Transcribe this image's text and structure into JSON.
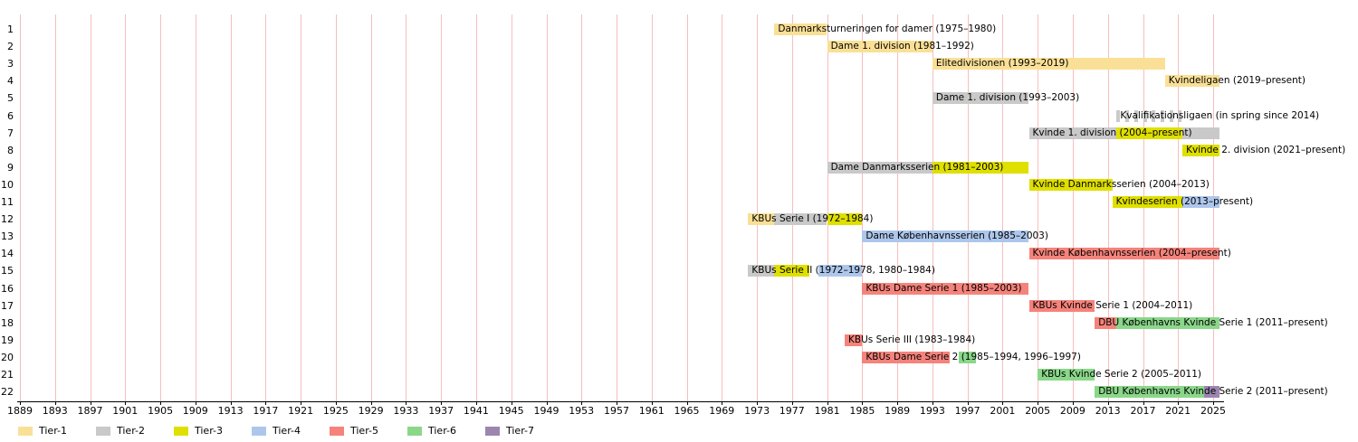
{
  "tiers": {
    "1": {
      "label": "Tier-1",
      "color": "#FAE096"
    },
    "2": {
      "label": "Tier-2",
      "color": "#C9C9C9"
    },
    "3": {
      "label": "Tier-3",
      "color": "#DFDF00"
    },
    "4": {
      "label": "Tier-4",
      "color": "#ADC6EB"
    },
    "5": {
      "label": "Tier-5",
      "color": "#F5837B"
    },
    "6": {
      "label": "Tier-6",
      "color": "#8AD78A"
    },
    "7": {
      "label": "Tier-7",
      "color": "#9C86B0"
    }
  },
  "colors": {
    "gridline": "#F7BEBE",
    "axis": "#000000",
    "background": "#FFFFFF",
    "text": "#000000"
  },
  "chart_data": {
    "type": "timeline",
    "x_axis": {
      "ticks": [
        1889,
        1893,
        1897,
        1901,
        1905,
        1909,
        1913,
        1917,
        1921,
        1925,
        1929,
        1933,
        1937,
        1941,
        1945,
        1949,
        1953,
        1957,
        1961,
        1965,
        1969,
        1973,
        1977,
        1981,
        1985,
        1989,
        1993,
        1997,
        2001,
        2005,
        2009,
        2013,
        2017,
        2021,
        2025
      ],
      "range": [
        1889,
        2026.6
      ]
    },
    "present_year": 2025.7,
    "y_axis": {
      "rows": 22
    },
    "rows": [
      {
        "row": 1,
        "label": "Danmarksturneringen for damer (1975–1980)",
        "segments": [
          {
            "from": 1975,
            "till": 1981,
            "tier": 1
          }
        ]
      },
      {
        "row": 2,
        "label": "Dame 1. division (1981–1992)",
        "segments": [
          {
            "from": 1981,
            "till": 1993,
            "tier": 1
          }
        ]
      },
      {
        "row": 3,
        "label": "Elitedivisionen (1993–2019)",
        "segments": [
          {
            "from": 1993,
            "till": 2019.5,
            "tier": 1
          }
        ]
      },
      {
        "row": 4,
        "label": "Kvindeligaen (2019–present)",
        "segments": [
          {
            "from": 2019.5,
            "till": 2025.7,
            "tier": 1
          }
        ]
      },
      {
        "row": 5,
        "label": "Dame 1. division (1993–2003)",
        "segments": [
          {
            "from": 1993,
            "till": 2004,
            "tier": 2
          }
        ]
      },
      {
        "row": 6,
        "label": "Kvalifikationsligaen (in spring since 2014)",
        "segments": [
          {
            "from": 2014,
            "till": 2014.42,
            "tier": 2
          },
          {
            "from": 2015,
            "till": 2015.42,
            "tier": 2
          },
          {
            "from": 2016,
            "till": 2016.42,
            "tier": 2
          },
          {
            "from": 2017,
            "till": 2017.42,
            "tier": 2
          },
          {
            "from": 2018,
            "till": 2018.42,
            "tier": 2
          },
          {
            "from": 2019,
            "till": 2019.42,
            "tier": 2
          },
          {
            "from": 2020,
            "till": 2020.42,
            "tier": 2
          },
          {
            "from": 2021,
            "till": 2021.42,
            "tier": 2
          }
        ]
      },
      {
        "row": 7,
        "label": "Kvinde 1. division (2004–present)",
        "segments": [
          {
            "from": 2004,
            "till": 2014,
            "tier": 2
          },
          {
            "from": 2014,
            "till": 2021.5,
            "tier": 3
          },
          {
            "from": 2021.5,
            "till": 2025.7,
            "tier": 2
          }
        ]
      },
      {
        "row": 8,
        "label": "Kvinde 2. division (2021–present)",
        "segments": [
          {
            "from": 2021.5,
            "till": 2025.7,
            "tier": 3
          }
        ]
      },
      {
        "row": 9,
        "label": "Dame Danmarksserien (1981–2003)",
        "segments": [
          {
            "from": 1981,
            "till": 1993,
            "tier": 2
          },
          {
            "from": 1993,
            "till": 2004,
            "tier": 3
          }
        ]
      },
      {
        "row": 10,
        "label": "Kvinde Danmarksserien (2004–2013)",
        "segments": [
          {
            "from": 2004,
            "till": 2013.5,
            "tier": 3
          }
        ]
      },
      {
        "row": 11,
        "label": "Kvindeserien (2013–present)",
        "segments": [
          {
            "from": 2013.5,
            "till": 2021.5,
            "tier": 3
          },
          {
            "from": 2021.5,
            "till": 2025.7,
            "tier": 4
          }
        ]
      },
      {
        "row": 12,
        "label": "KBUs Serie I (1972–1984)",
        "segments": [
          {
            "from": 1972,
            "till": 1975,
            "tier": 1
          },
          {
            "from": 1975,
            "till": 1981,
            "tier": 2
          },
          {
            "from": 1981,
            "till": 1985,
            "tier": 3
          }
        ]
      },
      {
        "row": 13,
        "label": "Dame Københavnsserien (1985–2003)",
        "segments": [
          {
            "from": 1985,
            "till": 2004,
            "tier": 4
          }
        ]
      },
      {
        "row": 14,
        "label": "Kvinde Københavnsserien (2004–present)",
        "segments": [
          {
            "from": 2004,
            "till": 2025.7,
            "tier": 5
          }
        ]
      },
      {
        "row": 15,
        "label": "KBUs Serie II (1972–1978, 1980–1984)",
        "segments": [
          {
            "from": 1972,
            "till": 1975,
            "tier": 2
          },
          {
            "from": 1975,
            "till": 1979,
            "tier": 3
          },
          {
            "from": 1980,
            "till": 1985,
            "tier": 4
          }
        ]
      },
      {
        "row": 16,
        "label": "KBUs Dame Serie 1 (1985–2003)",
        "segments": [
          {
            "from": 1985,
            "till": 2004,
            "tier": 5
          }
        ]
      },
      {
        "row": 17,
        "label": "KBUs Kvinde Serie 1 (2004–2011)",
        "segments": [
          {
            "from": 2004,
            "till": 2011.5,
            "tier": 5
          }
        ]
      },
      {
        "row": 18,
        "label": "DBU Københavns Kvinde Serie 1 (2011–present)",
        "segments": [
          {
            "from": 2011.5,
            "till": 2014,
            "tier": 5
          },
          {
            "from": 2014,
            "till": 2025.7,
            "tier": 6
          }
        ]
      },
      {
        "row": 19,
        "label": "KBUs Serie III (1983–1984)",
        "segments": [
          {
            "from": 1983,
            "till": 1985,
            "tier": 5
          }
        ]
      },
      {
        "row": 20,
        "label": "KBUs Dame Serie 2 (1985–1994, 1996–1997)",
        "segments": [
          {
            "from": 1985,
            "till": 1995,
            "tier": 5
          },
          {
            "from": 1996,
            "till": 1998,
            "tier": 6
          }
        ]
      },
      {
        "row": 21,
        "label": "KBUs Kvinde Serie 2 (2005–2011)",
        "segments": [
          {
            "from": 2005,
            "till": 2011.5,
            "tier": 6
          }
        ]
      },
      {
        "row": 22,
        "label": "DBU Københavns Kvinde Serie 2 (2011–present)",
        "segments": [
          {
            "from": 2011.5,
            "till": 2024,
            "tier": 6
          },
          {
            "from": 2024,
            "till": 2025.7,
            "tier": 7
          }
        ]
      }
    ],
    "legend": [
      1,
      2,
      3,
      4,
      5,
      6,
      7
    ],
    "legend_position": "bottom-left",
    "grid": "vertical-pink-lines"
  }
}
